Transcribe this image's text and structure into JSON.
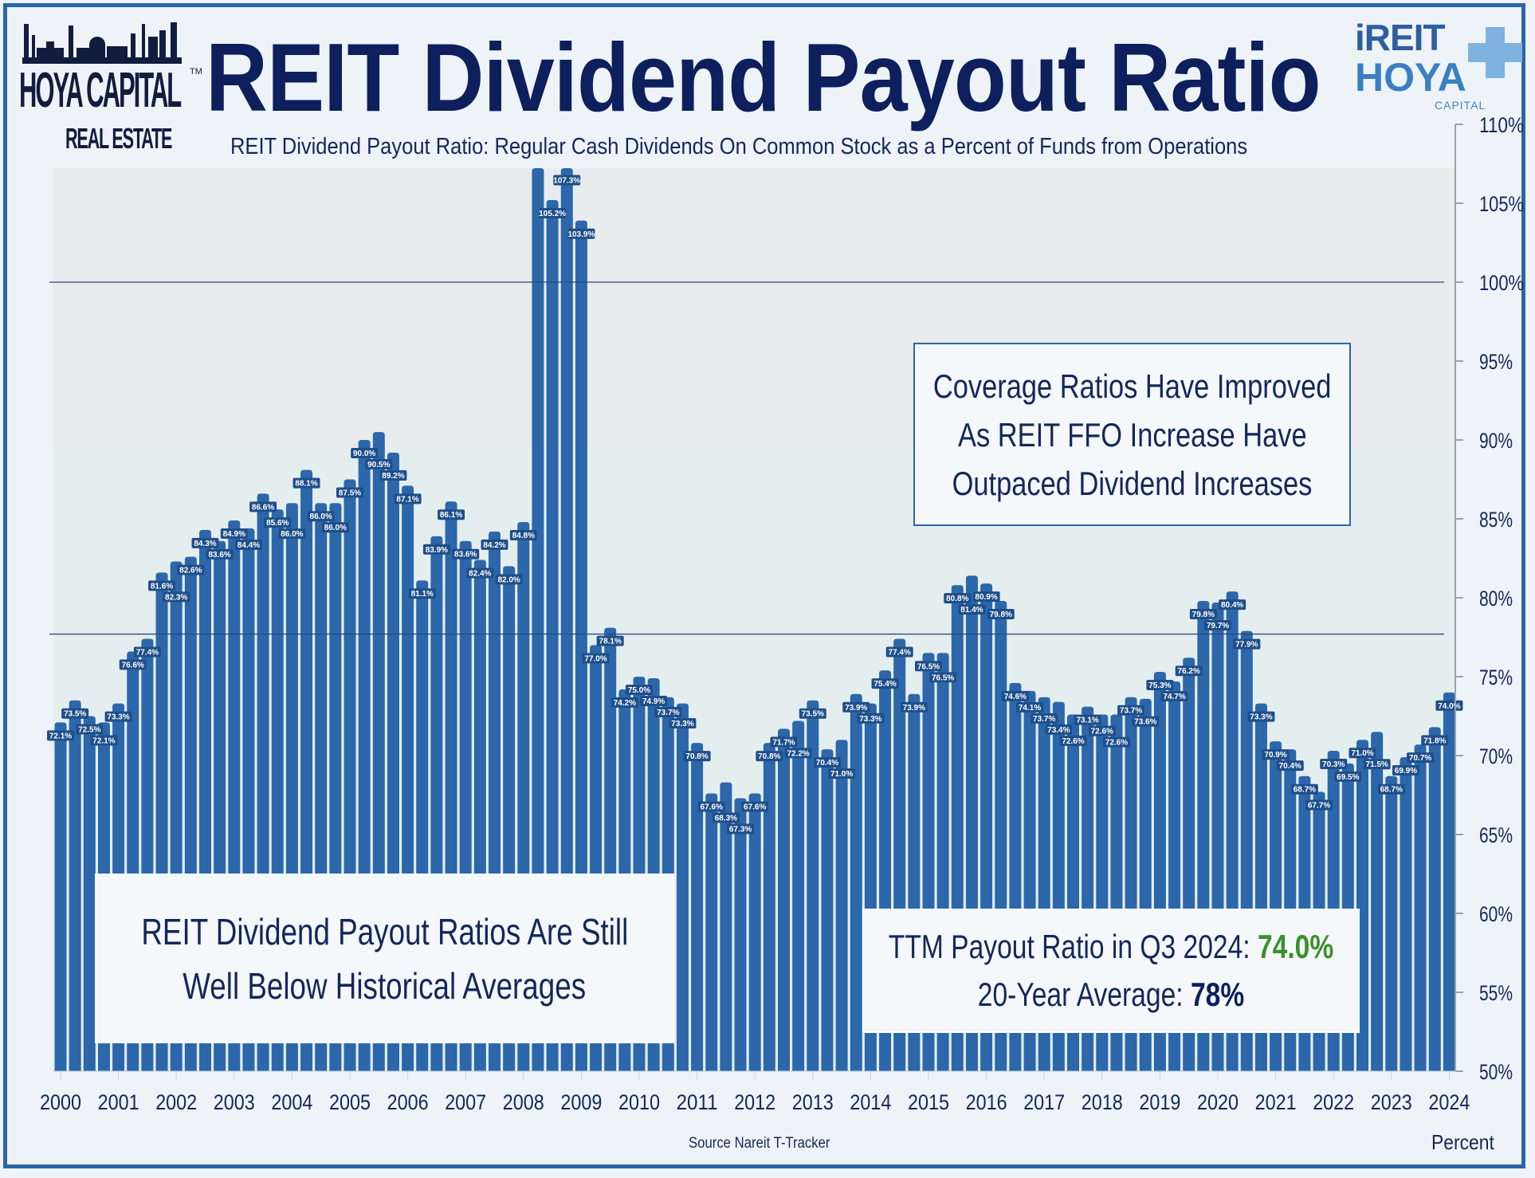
{
  "header": {
    "title": "REIT Dividend Payout Ratio",
    "subtitle": "REIT Dividend Payout Ratio: Regular Cash Dividends On Common Stock as a Percent of Funds from Operations"
  },
  "logos": {
    "left": {
      "name": "HOYA CAPITAL",
      "sub": "REAL ESTATE",
      "tm": "TM"
    },
    "right": {
      "line1": "iREIT",
      "line2": "HOYA",
      "line3": "CAPITAL"
    }
  },
  "annotations": {
    "coverage": [
      "Coverage Ratios Have Improved",
      "As REIT FFO Increase Have",
      "Outpaced Dividend Increases"
    ],
    "below_avg": [
      "REIT Dividend Payout Ratios Are Still",
      "Well Below Historical Averages"
    ],
    "ttm_label": "TTM Payout Ratio in Q3 2024: ",
    "ttm_value": "74.0%",
    "avg_label": "20-Year Average: ",
    "avg_value": "78%"
  },
  "footer": {
    "source": "Source Nareit T-Tracker",
    "unit": "Percent"
  },
  "colors": {
    "bar": "#2c67ab",
    "label_bg": "#1f4f8a",
    "band_upper": "#e9ebec",
    "band_lower": "#e5eeee",
    "highlight": "#3b8f2a",
    "title": "#0d1f5c"
  },
  "chart_data": {
    "type": "bar",
    "title": "REIT Dividend Payout Ratio",
    "ylabel": "Percent",
    "ylim": [
      50,
      110
    ],
    "yaxis_position": "right",
    "yticks": [
      "50%",
      "55%",
      "60%",
      "65%",
      "70%",
      "75%",
      "80%",
      "85%",
      "90%",
      "95%",
      "100%",
      "105%",
      "110%"
    ],
    "xticks": [
      "2000",
      "2001",
      "2002",
      "2003",
      "2004",
      "2005",
      "2006",
      "2007",
      "2008",
      "2009",
      "2010",
      "2011",
      "2012",
      "2013",
      "2014",
      "2015",
      "2016",
      "2017",
      "2018",
      "2019",
      "2020",
      "2021",
      "2022",
      "2023",
      "2024"
    ],
    "reference_lines": [
      100,
      77.7
    ],
    "values": [
      72.1,
      73.5,
      72.5,
      72.1,
      73.3,
      76.6,
      77.4,
      81.6,
      82.3,
      82.6,
      84.3,
      83.6,
      84.9,
      84.4,
      86.6,
      85.6,
      86.0,
      88.1,
      86.0,
      86.0,
      87.5,
      90.0,
      90.5,
      89.2,
      87.1,
      81.1,
      83.9,
      86.1,
      83.6,
      82.4,
      84.2,
      82.0,
      84.8,
      109.0,
      105.2,
      107.3,
      103.9,
      77.0,
      78.1,
      74.2,
      75.0,
      74.9,
      73.7,
      73.3,
      70.8,
      67.6,
      68.3,
      67.3,
      67.6,
      70.8,
      71.7,
      72.2,
      73.5,
      70.4,
      71.0,
      73.9,
      73.3,
      75.4,
      77.4,
      73.9,
      76.5,
      76.5,
      80.8,
      81.4,
      80.9,
      79.8,
      74.6,
      74.1,
      73.7,
      73.4,
      72.6,
      73.1,
      72.6,
      72.6,
      73.7,
      73.6,
      75.3,
      74.7,
      76.2,
      79.8,
      79.7,
      80.4,
      77.9,
      73.3,
      70.9,
      70.4,
      68.7,
      67.7,
      70.3,
      69.5,
      71.0,
      71.5,
      68.7,
      69.9,
      70.7,
      71.8,
      74.0
    ],
    "labels": [
      "72.1%",
      "73.5%",
      "72.5%",
      "72.1%",
      "73.3%",
      "76.6%",
      "77.4%",
      "81.6%",
      "82.3%",
      "82.6%",
      "84.3%",
      "83.6%",
      "84.9%",
      "84.4%",
      "86.6%",
      "85.6%",
      "86.0%",
      "88.1%",
      "86.0%",
      "86.0%",
      "87.5%",
      "90.0%",
      "90.5%",
      "89.2%",
      "87.1%",
      "81.1%",
      "83.9%",
      "86.1%",
      "83.6%",
      "82.4%",
      "84.2%",
      "82.0%",
      "84.8%",
      "",
      "105.2%",
      "107.3%",
      "103.9%",
      "77.0%",
      "78.1%",
      "74.2%",
      "75.0%",
      "74.9%",
      "73.7%",
      "73.3%",
      "70.8%",
      "67.6%",
      "68.3%",
      "67.3%",
      "67.6%",
      "70.8%",
      "71.7%",
      "72.2%",
      "73.5%",
      "70.4%",
      "71.0%",
      "73.9%",
      "73.3%",
      "75.4%",
      "77.4%",
      "73.9%",
      "76.5%",
      "76.5%",
      "80.8%",
      "81.4%",
      "80.9%",
      "79.8%",
      "74.6%",
      "74.1%",
      "73.7%",
      "73.4%",
      "72.6%",
      "73.1%",
      "72.6%",
      "72.6%",
      "73.7%",
      "73.6%",
      "75.3%",
      "74.7%",
      "76.2%",
      "79.8%",
      "79.7%",
      "80.4%",
      "77.9%",
      "73.3%",
      "70.9%",
      "70.4%",
      "68.7%",
      "67.7%",
      "70.3%",
      "69.5%",
      "71.0%",
      "71.5%",
      "68.7%",
      "69.9%",
      "70.7%",
      "71.8%",
      "74.0%"
    ]
  }
}
